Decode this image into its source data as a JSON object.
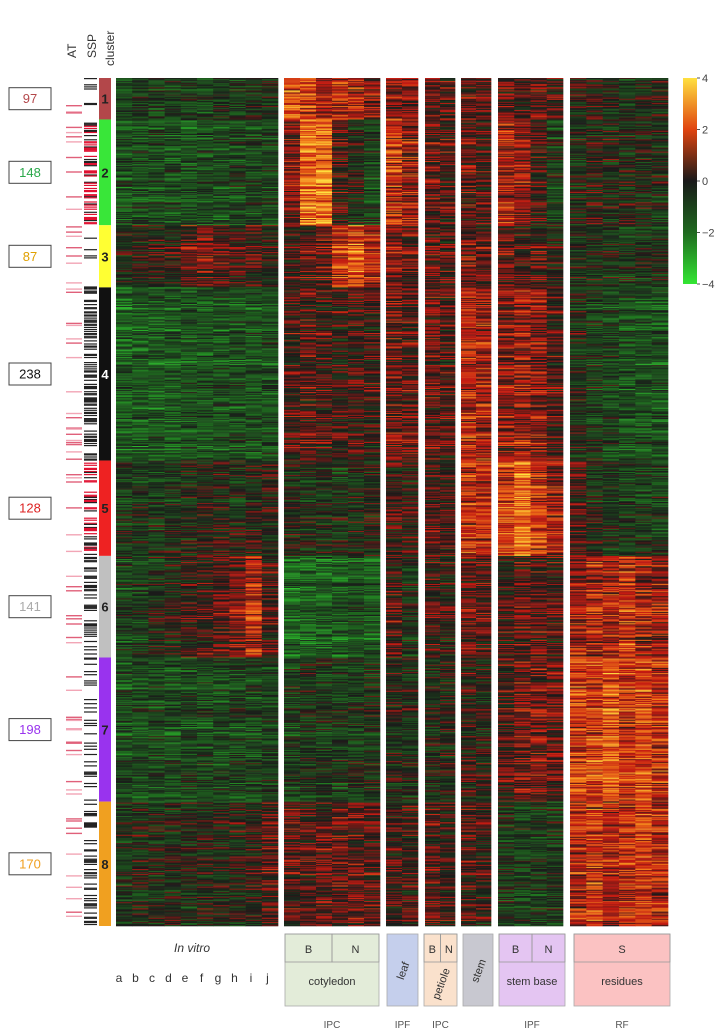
{
  "chart_data": {
    "type": "heatmap",
    "title": "",
    "row_header_labels": [
      "AT",
      "SSP",
      "cluster"
    ],
    "color_scale": {
      "ticks": [
        4,
        2,
        0,
        -2,
        -4
      ],
      "range": [
        -4,
        4
      ],
      "colors": {
        "low": "#33e633",
        "mid_low": "#1f5a1f",
        "zero": "#1a1a1a",
        "mid_high": "#c41a12",
        "high": "#ffe040"
      }
    },
    "clusters": [
      {
        "id": "1",
        "count": "97",
        "color": "#b3474a",
        "text_color": "#b3474a",
        "rows": 40
      },
      {
        "id": "2",
        "count": "148",
        "color": "#39e639",
        "text_color": "#2aa84a",
        "rows": 102
      },
      {
        "id": "3",
        "count": "87",
        "color": "#ffff33",
        "text_color": "#e0a000",
        "rows": 60
      },
      {
        "id": "4",
        "count": "238",
        "color": "#111111",
        "text_color": "#111111",
        "rows": 167
      },
      {
        "id": "5",
        "count": "128",
        "color": "#ee2222",
        "text_color": "#dd2222",
        "rows": 92
      },
      {
        "id": "6",
        "count": "141",
        "color": "#c0c0c0",
        "text_color": "#aaaaaa",
        "rows": 98
      },
      {
        "id": "7",
        "count": "198",
        "color": "#9933ee",
        "text_color": "#9933ee",
        "rows": 139
      },
      {
        "id": "8",
        "count": "170",
        "color": "#f0a020",
        "text_color": "#f0a020",
        "rows": 120
      }
    ],
    "groups": [
      {
        "name": "In vitro",
        "samples": [
          "a",
          "b",
          "c",
          "d",
          "e",
          "f",
          "g",
          "h",
          "i",
          "j"
        ],
        "columns": 10
      },
      {
        "name": "cotyledon",
        "sub": [
          "B",
          "N"
        ],
        "tissue": "IPC",
        "columns": 6,
        "bg": "#e3ecd9"
      },
      {
        "name": "leaf",
        "tissue": "IPF",
        "columns": 2,
        "bg": "#c5cfec"
      },
      {
        "name": "petiole",
        "sub": [
          "B",
          "N"
        ],
        "tissue": "IPC",
        "columns": 2,
        "bg": "#fae1cc"
      },
      {
        "name": "stem",
        "tissue": "",
        "columns": 2,
        "bg": "#c8c8d0"
      },
      {
        "name": "stem base",
        "sub": [
          "B",
          "N"
        ],
        "tissue": "IPF",
        "columns": 4,
        "bg": "#e4c5f2"
      },
      {
        "name": "residues",
        "sub": [
          "S"
        ],
        "tissue": "RF",
        "columns": 6,
        "bg": "#fbc2c2"
      }
    ],
    "column_profiles": {
      "1": [
        -1.2,
        -1,
        -1.1,
        -0.9,
        -1,
        -1.1,
        -0.9,
        -1,
        -0.8,
        -0.7,
        2.2,
        1.8,
        1.2,
        1.5,
        1.4,
        0.9,
        0.8,
        0.6,
        0.5,
        0.3,
        0.4,
        0.2,
        0.3,
        0.1,
        0.5,
        0.2,
        -0.3,
        -0.2,
        -0.4,
        -0.6,
        -0.5,
        -0.3
      ],
      "2": [
        -1.3,
        -1.2,
        -1.1,
        -1.2,
        -1.3,
        -1.1,
        -1.2,
        -1,
        -1.1,
        -1,
        0.8,
        2.6,
        2.8,
        0.2,
        -0.4,
        -1,
        1.8,
        1.2,
        0.6,
        0.3,
        0.5,
        0.2,
        1.4,
        1.2,
        0.1,
        -0.8,
        -0.4,
        -0.2,
        -0.3,
        -0.4,
        -0.5,
        -0.5
      ],
      "3": [
        -0.3,
        -0.2,
        0.1,
        -0.1,
        0.6,
        0.8,
        0.4,
        0.2,
        0.3,
        -0.2,
        0.2,
        0.4,
        0.6,
        1.8,
        2.4,
        1.5,
        1,
        0.6,
        0.5,
        0.3,
        0.8,
        0.5,
        0.5,
        0.2,
        0.3,
        -0.3,
        -0.5,
        -0.4,
        -0.6,
        -0.8,
        -0.6,
        -0.5
      ],
      "4": [
        -1.6,
        -1.5,
        -1.5,
        -1.4,
        -1.3,
        -1.4,
        -1.3,
        -1.2,
        -1.4,
        -1.2,
        0.3,
        0.5,
        0.2,
        0.1,
        0.2,
        0.1,
        0.8,
        0.5,
        0.6,
        0.4,
        1.6,
        1.4,
        1,
        1.2,
        1,
        0.4,
        -0.4,
        -0.8,
        -1,
        -1.3,
        -1.4,
        -1.3
      ],
      "5": [
        -0.8,
        -0.6,
        -0.7,
        -0.5,
        -0.4,
        -0.3,
        -0.2,
        -0.4,
        -0.1,
        0,
        -0.3,
        -0.4,
        -0.5,
        -0.6,
        -0.4,
        -0.3,
        0.2,
        0,
        0.4,
        0.2,
        1.8,
        1.6,
        2,
        2.6,
        1.8,
        1.2,
        0.3,
        -0.4,
        -0.6,
        -0.8,
        -0.9,
        -0.8
      ],
      "6": [
        -0.9,
        -0.8,
        -0.5,
        -0.2,
        0.1,
        0.3,
        0.6,
        0.8,
        1.6,
        0.4,
        -1.8,
        -1.7,
        -1.6,
        -1.6,
        -1.4,
        -1.5,
        0.4,
        -0.5,
        0.2,
        -0.1,
        0.6,
        0.4,
        0.2,
        0.5,
        0.6,
        0.3,
        1.2,
        1.5,
        1.4,
        1.8,
        1.3,
        1.1
      ],
      "7": [
        -1.2,
        -1.1,
        -1,
        -1.1,
        -0.9,
        -1,
        -1,
        -0.9,
        -1,
        -0.8,
        -0.8,
        -0.6,
        -0.7,
        -0.7,
        -0.6,
        -0.5,
        -0.2,
        -0.4,
        -0.3,
        -0.2,
        0.1,
        -0.1,
        0.4,
        0.8,
        0.9,
        0.7,
        2,
        2.1,
        2.4,
        1.9,
        2.2,
        1.8
      ],
      "8": [
        -0.6,
        -0.4,
        -0.5,
        -0.3,
        -0.5,
        -0.2,
        -0.3,
        -0.2,
        -0.1,
        0.5,
        0.4,
        0.3,
        0.5,
        0.6,
        0.7,
        0.4,
        0.2,
        0.1,
        0.3,
        0.2,
        0.3,
        0.1,
        -0.8,
        -1,
        -0.9,
        -0.7,
        1.5,
        1.8,
        1.4,
        1.6,
        1.9,
        1.5
      ]
    }
  }
}
